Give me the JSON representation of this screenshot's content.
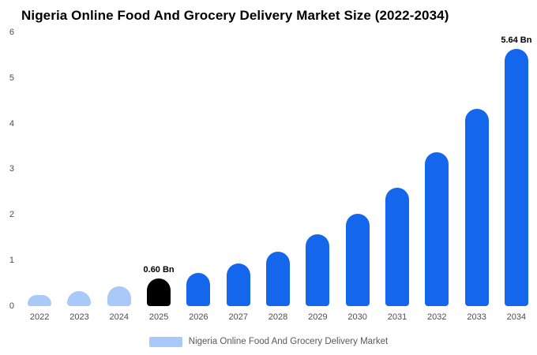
{
  "title": "Nigeria Online Food And Grocery Delivery Market Size (2022-2034)",
  "colors": {
    "light": "#a9caf8",
    "primary": "#1466ec",
    "black": "#000000"
  },
  "legend": {
    "label": "Nigeria Online Food And Grocery Delivery Market"
  },
  "chart_data": {
    "type": "bar",
    "title": "Nigeria Online Food And Grocery Delivery Market Size (2022-2034)",
    "xlabel": "",
    "ylabel": "",
    "ylim": [
      0,
      6
    ],
    "yticks": [
      0,
      1,
      2,
      3,
      4,
      5,
      6
    ],
    "grid": false,
    "legend_position": "bottom",
    "categories": [
      "2022",
      "2023",
      "2024",
      "2025",
      "2026",
      "2027",
      "2028",
      "2029",
      "2030",
      "2031",
      "2032",
      "2033",
      "2034"
    ],
    "values": [
      0.25,
      0.33,
      0.43,
      0.6,
      0.72,
      0.93,
      1.2,
      1.57,
      2.03,
      2.6,
      3.37,
      4.33,
      5.64
    ],
    "bar_colors": [
      "light",
      "light",
      "light",
      "black",
      "primary",
      "primary",
      "primary",
      "primary",
      "primary",
      "primary",
      "primary",
      "primary",
      "primary"
    ],
    "annotations": [
      {
        "category": "2025",
        "text": "0.60 Bn"
      },
      {
        "category": "2034",
        "text": "5.64 Bn"
      }
    ]
  }
}
